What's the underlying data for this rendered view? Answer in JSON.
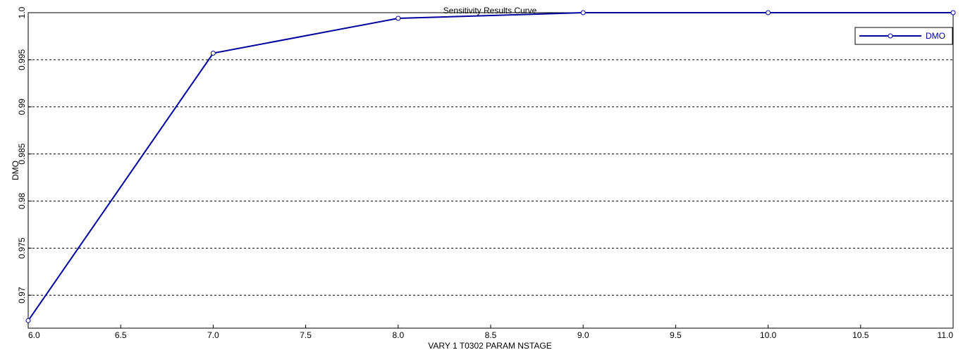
{
  "chart_data": {
    "type": "line",
    "title": "Sensitivity Results Curve",
    "xlabel": "VARY   1 T0302 PARAM NSTAGE",
    "ylabel": "DMO",
    "xlim": [
      6.0,
      11.0
    ],
    "ylim": [
      0.9665,
      1.0
    ],
    "x_ticks": [
      "6.0",
      "6.5",
      "7.0",
      "7.5",
      "8.0",
      "8.5",
      "9.0",
      "9.5",
      "10.0",
      "10.5",
      "11.0"
    ],
    "y_ticks": [
      "0.97",
      "0.975",
      "0.98",
      "0.985",
      "0.99",
      "0.995",
      "1.0"
    ],
    "grid": "horizontal-dashed",
    "legend_position": "top-right",
    "series": [
      {
        "name": "DMO",
        "color": "#0000a0",
        "marker": "circle",
        "x": [
          6.0,
          7.0,
          8.0,
          9.0,
          10.0,
          11.0
        ],
        "y": [
          0.9673,
          0.9957,
          0.9994,
          1.0,
          1.0,
          1.0
        ]
      }
    ]
  }
}
